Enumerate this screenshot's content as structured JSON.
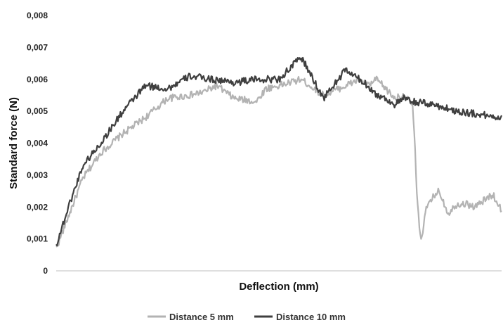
{
  "chart_data": {
    "type": "line",
    "xlabel": "Deflection (mm)",
    "ylabel": "Standard  force (N)",
    "ylim": [
      0,
      0.008
    ],
    "y_ticks": [
      "0",
      "0,001",
      "0,002",
      "0,003",
      "0,004",
      "0,005",
      "0,006",
      "0,007",
      "0,008"
    ],
    "y_tick_values": [
      0,
      0.001,
      0.002,
      0.003,
      0.004,
      0.005,
      0.006,
      0.007,
      0.008
    ],
    "x_ticks_shown": false,
    "x_axis": "unlabeled",
    "grid": false,
    "legend_position": "bottom",
    "series": [
      {
        "name": "Distance 5 mm",
        "color": "#b3b3b3",
        "x": [
          0,
          0.03,
          0.06,
          0.1,
          0.15,
          0.2,
          0.25,
          0.3,
          0.33,
          0.36,
          0.4,
          0.45,
          0.47,
          0.5,
          0.55,
          0.6,
          0.65,
          0.68,
          0.7,
          0.72,
          0.74,
          0.76,
          0.78,
          0.8,
          0.805,
          0.81,
          0.815,
          0.82,
          0.83,
          0.85,
          0.86,
          0.88,
          0.9,
          0.92,
          0.94,
          0.96,
          0.98,
          1.0
        ],
        "y": [
          0.0007,
          0.0018,
          0.0029,
          0.0037,
          0.0043,
          0.0048,
          0.0054,
          0.0055,
          0.0056,
          0.0058,
          0.0054,
          0.0053,
          0.0057,
          0.0058,
          0.006,
          0.0055,
          0.0058,
          0.006,
          0.0058,
          0.006,
          0.0057,
          0.0054,
          0.0055,
          0.0052,
          0.004,
          0.0023,
          0.0014,
          0.001,
          0.0019,
          0.0024,
          0.0025,
          0.0018,
          0.0021,
          0.0021,
          0.002,
          0.0022,
          0.0024,
          0.0019
        ]
      },
      {
        "name": "Distance 10 mm",
        "color": "#3f3f3f",
        "x": [
          0,
          0.03,
          0.06,
          0.1,
          0.15,
          0.2,
          0.25,
          0.3,
          0.35,
          0.4,
          0.45,
          0.5,
          0.55,
          0.6,
          0.65,
          0.7,
          0.72,
          0.74,
          0.76,
          0.78,
          0.8,
          0.85,
          0.9,
          0.95,
          1.0
        ],
        "y": [
          0.0008,
          0.0021,
          0.0033,
          0.004,
          0.005,
          0.0058,
          0.0057,
          0.0061,
          0.006,
          0.0059,
          0.006,
          0.006,
          0.0067,
          0.0054,
          0.0063,
          0.0058,
          0.0055,
          0.0054,
          0.0052,
          0.0054,
          0.0053,
          0.0052,
          0.005,
          0.0049,
          0.0048
        ]
      }
    ]
  }
}
